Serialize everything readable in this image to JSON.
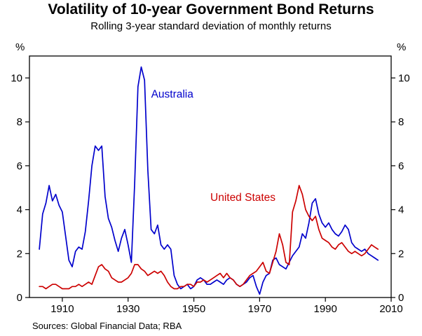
{
  "title": "Volatility of 10-year Government Bond Returns",
  "subtitle": "Rolling 3-year standard deviation of monthly returns",
  "source": "Sources: Global Financial Data; RBA",
  "chart_data": {
    "type": "line",
    "title": "Volatility of 10-year Government Bond Returns",
    "subtitle": "Rolling 3-year standard deviation of monthly returns",
    "y_unit_left": "%",
    "y_unit_right": "%",
    "xlim": [
      1900,
      2010
    ],
    "ylim": [
      0,
      11
    ],
    "yticks": [
      0,
      2,
      4,
      6,
      8,
      10
    ],
    "xticks": [
      1910,
      1930,
      1950,
      1970,
      1990,
      2010
    ],
    "grid": false,
    "legend": "inline-labels",
    "axis_color": "#000000",
    "series": [
      {
        "name": "Australia",
        "color": "#0000CC",
        "label": {
          "text": "Australia",
          "x": 1937,
          "y": 9.1
        },
        "points": [
          [
            1903,
            2.2
          ],
          [
            1904,
            3.8
          ],
          [
            1905,
            4.3
          ],
          [
            1906,
            5.1
          ],
          [
            1907,
            4.4
          ],
          [
            1908,
            4.7
          ],
          [
            1909,
            4.2
          ],
          [
            1910,
            3.9
          ],
          [
            1911,
            2.8
          ],
          [
            1912,
            1.7
          ],
          [
            1913,
            1.4
          ],
          [
            1914,
            2.1
          ],
          [
            1915,
            2.3
          ],
          [
            1916,
            2.2
          ],
          [
            1917,
            3.0
          ],
          [
            1918,
            4.4
          ],
          [
            1919,
            6.0
          ],
          [
            1920,
            6.9
          ],
          [
            1921,
            6.7
          ],
          [
            1922,
            6.9
          ],
          [
            1923,
            4.6
          ],
          [
            1924,
            3.6
          ],
          [
            1925,
            3.2
          ],
          [
            1926,
            2.6
          ],
          [
            1927,
            2.1
          ],
          [
            1928,
            2.7
          ],
          [
            1929,
            3.1
          ],
          [
            1930,
            2.4
          ],
          [
            1931,
            1.6
          ],
          [
            1932,
            5.2
          ],
          [
            1933,
            9.6
          ],
          [
            1934,
            10.5
          ],
          [
            1935,
            9.9
          ],
          [
            1936,
            5.8
          ],
          [
            1937,
            3.1
          ],
          [
            1938,
            2.9
          ],
          [
            1939,
            3.3
          ],
          [
            1940,
            2.4
          ],
          [
            1941,
            2.2
          ],
          [
            1942,
            2.4
          ],
          [
            1943,
            2.2
          ],
          [
            1944,
            1.0
          ],
          [
            1945,
            0.6
          ],
          [
            1946,
            0.4
          ],
          [
            1947,
            0.5
          ],
          [
            1948,
            0.6
          ],
          [
            1949,
            0.4
          ],
          [
            1950,
            0.5
          ],
          [
            1951,
            0.8
          ],
          [
            1952,
            0.9
          ],
          [
            1953,
            0.8
          ],
          [
            1954,
            0.6
          ],
          [
            1955,
            0.6
          ],
          [
            1956,
            0.7
          ],
          [
            1957,
            0.8
          ],
          [
            1958,
            0.7
          ],
          [
            1959,
            0.6
          ],
          [
            1960,
            0.8
          ],
          [
            1961,
            0.9
          ],
          [
            1962,
            0.8
          ],
          [
            1963,
            0.6
          ],
          [
            1964,
            0.5
          ],
          [
            1965,
            0.6
          ],
          [
            1966,
            0.7
          ],
          [
            1967,
            0.9
          ],
          [
            1968,
            1.0
          ],
          [
            1969,
            0.5
          ],
          [
            1970,
            0.15
          ],
          [
            1971,
            0.7
          ],
          [
            1972,
            1.0
          ],
          [
            1973,
            1.1
          ],
          [
            1974,
            1.7
          ],
          [
            1975,
            1.8
          ],
          [
            1976,
            1.5
          ],
          [
            1977,
            1.4
          ],
          [
            1978,
            1.3
          ],
          [
            1979,
            1.6
          ],
          [
            1980,
            1.9
          ],
          [
            1981,
            2.1
          ],
          [
            1982,
            2.3
          ],
          [
            1983,
            2.9
          ],
          [
            1984,
            2.7
          ],
          [
            1985,
            3.4
          ],
          [
            1986,
            4.3
          ],
          [
            1987,
            4.5
          ],
          [
            1988,
            3.8
          ],
          [
            1989,
            3.4
          ],
          [
            1990,
            3.2
          ],
          [
            1991,
            3.4
          ],
          [
            1992,
            3.1
          ],
          [
            1993,
            2.9
          ],
          [
            1994,
            2.8
          ],
          [
            1995,
            3.0
          ],
          [
            1996,
            3.3
          ],
          [
            1997,
            3.1
          ],
          [
            1998,
            2.5
          ],
          [
            1999,
            2.3
          ],
          [
            2000,
            2.2
          ],
          [
            2001,
            2.1
          ],
          [
            2002,
            2.2
          ],
          [
            2003,
            2.0
          ],
          [
            2004,
            1.9
          ],
          [
            2005,
            1.8
          ],
          [
            2006,
            1.7
          ]
        ]
      },
      {
        "name": "United States",
        "color": "#CC0000",
        "label": {
          "text": "United States",
          "x": 1955,
          "y": 4.4
        },
        "points": [
          [
            1903,
            0.5
          ],
          [
            1904,
            0.5
          ],
          [
            1905,
            0.4
          ],
          [
            1906,
            0.5
          ],
          [
            1907,
            0.6
          ],
          [
            1908,
            0.6
          ],
          [
            1909,
            0.5
          ],
          [
            1910,
            0.4
          ],
          [
            1911,
            0.4
          ],
          [
            1912,
            0.4
          ],
          [
            1913,
            0.5
          ],
          [
            1914,
            0.5
          ],
          [
            1915,
            0.6
          ],
          [
            1916,
            0.5
          ],
          [
            1917,
            0.6
          ],
          [
            1918,
            0.7
          ],
          [
            1919,
            0.6
          ],
          [
            1920,
            1.0
          ],
          [
            1921,
            1.4
          ],
          [
            1922,
            1.5
          ],
          [
            1923,
            1.3
          ],
          [
            1924,
            1.2
          ],
          [
            1925,
            0.9
          ],
          [
            1926,
            0.8
          ],
          [
            1927,
            0.7
          ],
          [
            1928,
            0.7
          ],
          [
            1929,
            0.8
          ],
          [
            1930,
            0.9
          ],
          [
            1931,
            1.1
          ],
          [
            1932,
            1.5
          ],
          [
            1933,
            1.5
          ],
          [
            1934,
            1.3
          ],
          [
            1935,
            1.2
          ],
          [
            1936,
            1.0
          ],
          [
            1937,
            1.1
          ],
          [
            1938,
            1.2
          ],
          [
            1939,
            1.1
          ],
          [
            1940,
            1.2
          ],
          [
            1941,
            1.0
          ],
          [
            1942,
            0.7
          ],
          [
            1943,
            0.5
          ],
          [
            1944,
            0.4
          ],
          [
            1945,
            0.4
          ],
          [
            1946,
            0.5
          ],
          [
            1947,
            0.5
          ],
          [
            1948,
            0.6
          ],
          [
            1949,
            0.6
          ],
          [
            1950,
            0.5
          ],
          [
            1951,
            0.7
          ],
          [
            1952,
            0.7
          ],
          [
            1953,
            0.8
          ],
          [
            1954,
            0.7
          ],
          [
            1955,
            0.8
          ],
          [
            1956,
            0.9
          ],
          [
            1957,
            1.0
          ],
          [
            1958,
            1.1
          ],
          [
            1959,
            0.9
          ],
          [
            1960,
            1.1
          ],
          [
            1961,
            0.9
          ],
          [
            1962,
            0.8
          ],
          [
            1963,
            0.6
          ],
          [
            1964,
            0.5
          ],
          [
            1965,
            0.6
          ],
          [
            1966,
            0.8
          ],
          [
            1967,
            1.0
          ],
          [
            1968,
            1.1
          ],
          [
            1969,
            1.2
          ],
          [
            1970,
            1.4
          ],
          [
            1971,
            1.6
          ],
          [
            1972,
            1.2
          ],
          [
            1973,
            1.1
          ],
          [
            1974,
            1.6
          ],
          [
            1975,
            2.1
          ],
          [
            1976,
            2.9
          ],
          [
            1977,
            2.4
          ],
          [
            1978,
            1.6
          ],
          [
            1979,
            1.5
          ],
          [
            1980,
            3.9
          ],
          [
            1981,
            4.4
          ],
          [
            1982,
            5.1
          ],
          [
            1983,
            4.7
          ],
          [
            1984,
            4.0
          ],
          [
            1985,
            3.7
          ],
          [
            1986,
            3.5
          ],
          [
            1987,
            3.7
          ],
          [
            1988,
            3.1
          ],
          [
            1989,
            2.7
          ],
          [
            1990,
            2.6
          ],
          [
            1991,
            2.5
          ],
          [
            1992,
            2.3
          ],
          [
            1993,
            2.2
          ],
          [
            1994,
            2.4
          ],
          [
            1995,
            2.5
          ],
          [
            1996,
            2.3
          ],
          [
            1997,
            2.1
          ],
          [
            1998,
            2.0
          ],
          [
            1999,
            2.1
          ],
          [
            2000,
            2.0
          ],
          [
            2001,
            1.9
          ],
          [
            2002,
            2.0
          ],
          [
            2003,
            2.2
          ],
          [
            2004,
            2.4
          ],
          [
            2005,
            2.3
          ],
          [
            2006,
            2.2
          ]
        ]
      }
    ]
  }
}
